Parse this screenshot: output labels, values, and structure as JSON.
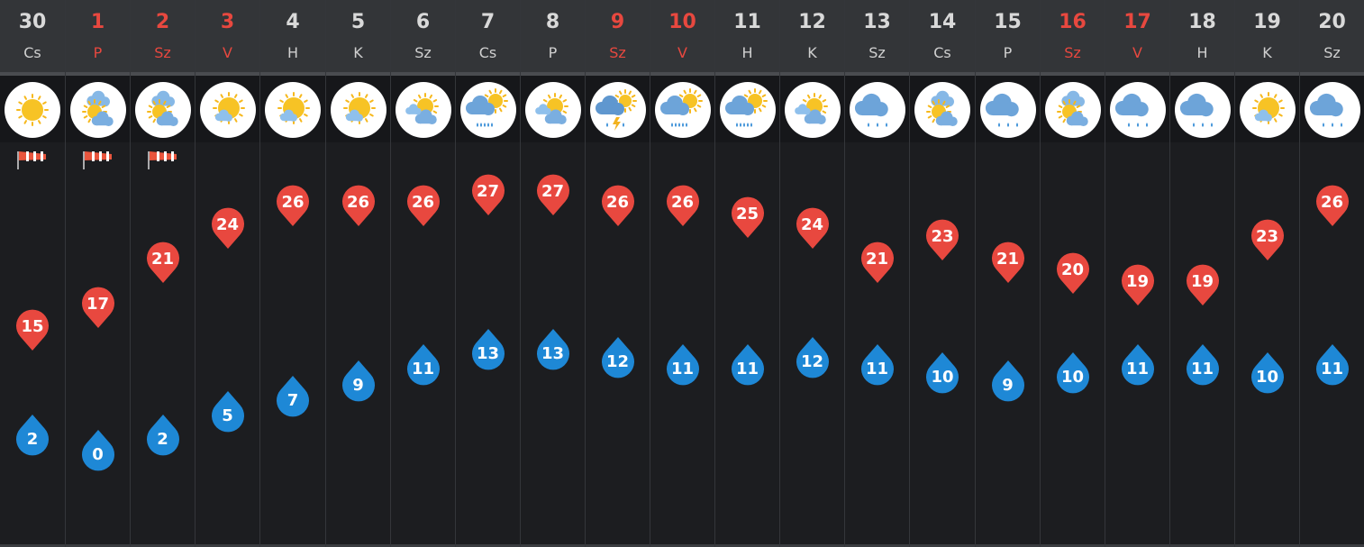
{
  "forecast": {
    "colors": {
      "high_temp": "#e8483f",
      "low_temp": "#1e88d6",
      "weekend_text": "#e8483f",
      "weekday_text": "#d9d9d9",
      "background": "#1c1d20",
      "header_bg": "#333538"
    },
    "days": [
      {
        "date": "30",
        "weekday": "Cs",
        "weekend": false,
        "icon": "sun-icon",
        "windy": true,
        "high": "15",
        "low": "2"
      },
      {
        "date": "1",
        "weekday": "P",
        "weekend": true,
        "icon": "sun-behind-clouds-icon",
        "windy": true,
        "high": "17",
        "low": "0"
      },
      {
        "date": "2",
        "weekday": "Sz",
        "weekend": true,
        "icon": "sun-behind-clouds-icon",
        "windy": true,
        "high": "21",
        "low": "2"
      },
      {
        "date": "3",
        "weekday": "V",
        "weekend": true,
        "icon": "sun-small-cloud-icon",
        "windy": false,
        "high": "24",
        "low": "5"
      },
      {
        "date": "4",
        "weekday": "H",
        "weekend": false,
        "icon": "sun-small-cloud-icon",
        "windy": false,
        "high": "26",
        "low": "7"
      },
      {
        "date": "5",
        "weekday": "K",
        "weekend": false,
        "icon": "sun-small-cloud-icon",
        "windy": false,
        "high": "26",
        "low": "9"
      },
      {
        "date": "6",
        "weekday": "Sz",
        "weekend": false,
        "icon": "partly-cloudy-icon",
        "windy": false,
        "high": "26",
        "low": "11"
      },
      {
        "date": "7",
        "weekday": "Cs",
        "weekend": false,
        "icon": "rain-sun-cloud-icon",
        "windy": false,
        "high": "27",
        "low": "13"
      },
      {
        "date": "8",
        "weekday": "P",
        "weekend": false,
        "icon": "partly-cloudy-icon",
        "windy": false,
        "high": "27",
        "low": "13"
      },
      {
        "date": "9",
        "weekday": "Sz",
        "weekend": true,
        "icon": "thunderstorm-icon",
        "windy": false,
        "high": "26",
        "low": "12"
      },
      {
        "date": "10",
        "weekday": "V",
        "weekend": true,
        "icon": "rain-sun-cloud-icon",
        "windy": false,
        "high": "26",
        "low": "11"
      },
      {
        "date": "11",
        "weekday": "H",
        "weekend": false,
        "icon": "rain-sun-cloud-icon",
        "windy": false,
        "high": "25",
        "low": "11"
      },
      {
        "date": "12",
        "weekday": "K",
        "weekend": false,
        "icon": "partly-cloudy-icon",
        "windy": false,
        "high": "24",
        "low": "12"
      },
      {
        "date": "13",
        "weekday": "Sz",
        "weekend": false,
        "icon": "rain-cloud-icon",
        "windy": false,
        "high": "21",
        "low": "11"
      },
      {
        "date": "14",
        "weekday": "Cs",
        "weekend": false,
        "icon": "sun-behind-clouds-icon",
        "windy": false,
        "high": "23",
        "low": "10"
      },
      {
        "date": "15",
        "weekday": "P",
        "weekend": false,
        "icon": "rain-cloud-icon",
        "windy": false,
        "high": "21",
        "low": "9"
      },
      {
        "date": "16",
        "weekday": "Sz",
        "weekend": true,
        "icon": "sun-behind-clouds-icon",
        "windy": false,
        "high": "20",
        "low": "10"
      },
      {
        "date": "17",
        "weekday": "V",
        "weekend": true,
        "icon": "rain-cloud-icon",
        "windy": false,
        "high": "19",
        "low": "11"
      },
      {
        "date": "18",
        "weekday": "H",
        "weekend": false,
        "icon": "rain-cloud-icon",
        "windy": false,
        "high": "19",
        "low": "11"
      },
      {
        "date": "19",
        "weekday": "K",
        "weekend": false,
        "icon": "sun-small-cloud-icon",
        "windy": false,
        "high": "23",
        "low": "10"
      },
      {
        "date": "20",
        "weekday": "Sz",
        "weekend": false,
        "icon": "rain-cloud-icon",
        "windy": false,
        "high": "26",
        "low": "11"
      }
    ]
  }
}
